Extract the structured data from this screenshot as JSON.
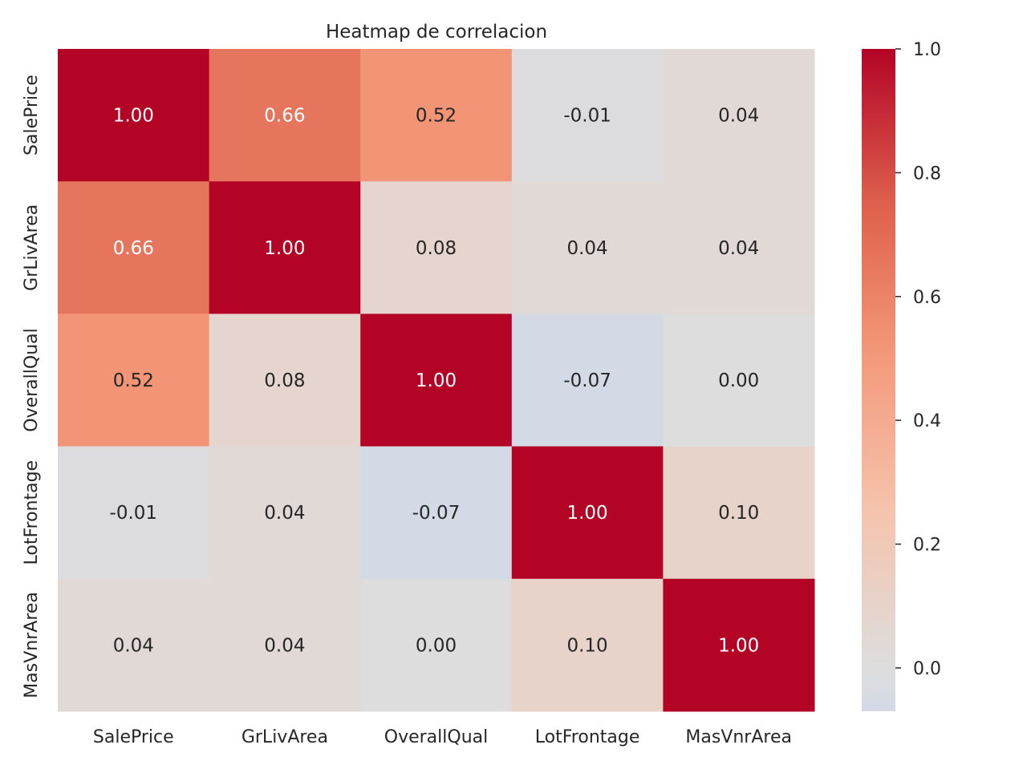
{
  "chart_data": {
    "type": "heatmap",
    "title": "Heatmap de correlacion",
    "x_labels": [
      "SalePrice",
      "GrLivArea",
      "OverallQual",
      "LotFrontage",
      "MasVnrArea"
    ],
    "y_labels": [
      "SalePrice",
      "GrLivArea",
      "OverallQual",
      "LotFrontage",
      "MasVnrArea"
    ],
    "values": [
      [
        1.0,
        0.66,
        0.52,
        -0.01,
        0.04
      ],
      [
        0.66,
        1.0,
        0.08,
        0.04,
        0.04
      ],
      [
        0.52,
        0.08,
        1.0,
        -0.07,
        0.0
      ],
      [
        -0.01,
        0.04,
        -0.07,
        1.0,
        0.1
      ],
      [
        0.04,
        0.04,
        0.0,
        0.1,
        1.0
      ]
    ],
    "cell_labels": [
      [
        "1.00",
        "0.66",
        "0.52",
        "-0.01",
        "0.04"
      ],
      [
        "0.66",
        "1.00",
        "0.08",
        "0.04",
        "0.04"
      ],
      [
        "0.52",
        "0.08",
        "1.00",
        "-0.07",
        "0.00"
      ],
      [
        "-0.01",
        "0.04",
        "-0.07",
        "1.00",
        "0.10"
      ],
      [
        "0.04",
        "0.04",
        "0.00",
        "0.10",
        "1.00"
      ]
    ],
    "colormap": "coolwarm",
    "colormap_center": 0,
    "value_range": [
      -0.07,
      1.0
    ],
    "colorbar": {
      "placement": "right",
      "ticks": [
        0.0,
        0.2,
        0.4,
        0.6,
        0.8,
        1.0
      ],
      "tick_labels": [
        "0.0",
        "0.2",
        "0.4",
        "0.6",
        "0.8",
        "1.0"
      ]
    },
    "text_color_dark": "#262626",
    "text_color_light": "#ffffff",
    "grid": false
  }
}
